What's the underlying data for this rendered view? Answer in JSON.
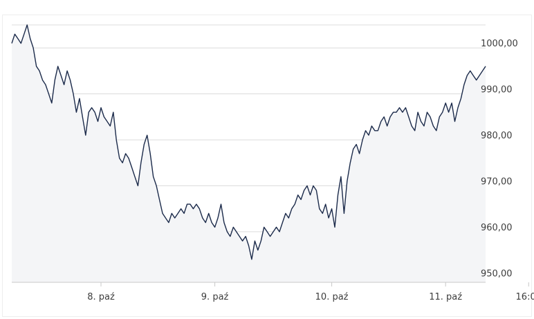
{
  "chart_data": {
    "type": "area",
    "title": "",
    "xlabel": "",
    "ylabel": "",
    "ylim": [
      949,
      1005
    ],
    "grid": true,
    "y_ticks": [
      950,
      960,
      970,
      980,
      990,
      1000
    ],
    "y_tick_labels": [
      "950,00",
      "960,00",
      "970,00",
      "980,00",
      "990,00",
      "1000,00"
    ],
    "x_tick_labels": [
      "8. paź",
      "9. paź",
      "10. paź",
      "11. paź",
      "16:00"
    ],
    "x_ticks_index": [
      29,
      66,
      104,
      141,
      168
    ],
    "colors": {
      "line": "#1b2a4a",
      "area": "#f4f5f7",
      "grid": "#dcdcdc",
      "axis": "#c8c8c8"
    },
    "series": [
      {
        "values": [
          1001,
          1003,
          1002,
          1001,
          1003,
          1005,
          1002,
          1000,
          996,
          995,
          993,
          992,
          990,
          988,
          993,
          996,
          994,
          992,
          995,
          993,
          990,
          986,
          989,
          985,
          981,
          986,
          987,
          986,
          984,
          987,
          985,
          984,
          983,
          986,
          980,
          976,
          975,
          977,
          976,
          974,
          972,
          970,
          975,
          979,
          981,
          977,
          972,
          970,
          967,
          964,
          963,
          962,
          964,
          963,
          964,
          965,
          964,
          966,
          966,
          965,
          966,
          965,
          963,
          962,
          964,
          962,
          961,
          963,
          966,
          962,
          960,
          959,
          961,
          960,
          959,
          958,
          959,
          957,
          954,
          958,
          956,
          958,
          961,
          960,
          959,
          960,
          961,
          960,
          962,
          964,
          963,
          965,
          966,
          968,
          967,
          969,
          970,
          968,
          970,
          969,
          965,
          964,
          966,
          963,
          965,
          961,
          968,
          972,
          964,
          971,
          975,
          978,
          979,
          977,
          980,
          982,
          981,
          983,
          982,
          982,
          984,
          985,
          983,
          985,
          986,
          986,
          987,
          986,
          987,
          985,
          983,
          982,
          986,
          984,
          983,
          986,
          985,
          983,
          982,
          985,
          986,
          988,
          986,
          988,
          984,
          987,
          989,
          992,
          994,
          995,
          994,
          993,
          994,
          995,
          996
        ]
      }
    ]
  }
}
